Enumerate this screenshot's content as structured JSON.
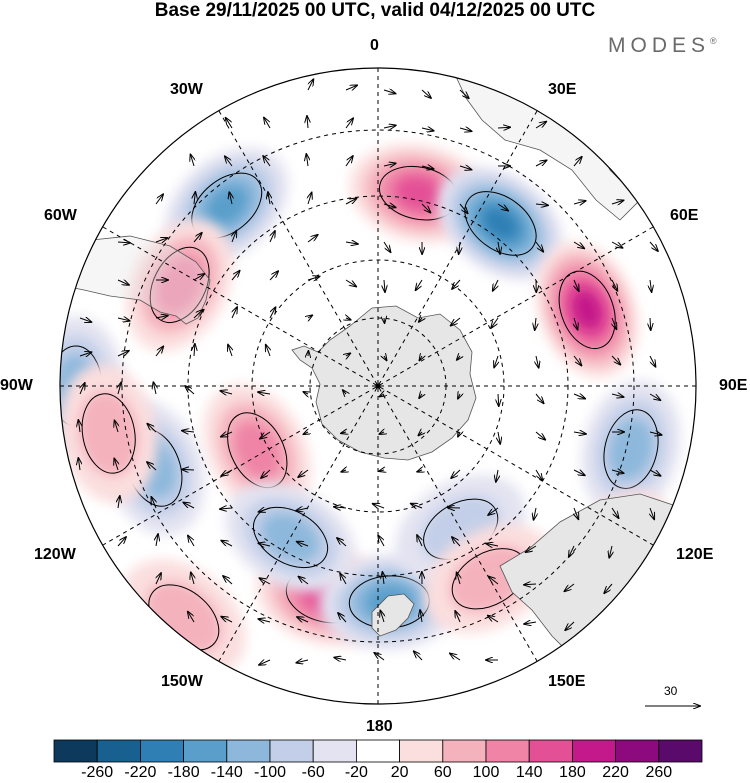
{
  "title": "Base 29/11/2025 00 UTC, valid 04/12/2025 00 UTC",
  "brand": "MODES",
  "brand_mark": "®",
  "longitude_labels": {
    "top": "0",
    "e30": "30E",
    "e60": "60E",
    "e90": "90E",
    "e120": "120E",
    "e150": "150E",
    "bottom": "180",
    "w150": "150W",
    "w120": "120W",
    "w90": "90W",
    "w60": "60W",
    "w30": "30W"
  },
  "reference_vector": "30",
  "colorbar": {
    "ticks": [
      "-260",
      "-220",
      "-180",
      "-140",
      "-100",
      "-60",
      "-20",
      "20",
      "60",
      "100",
      "140",
      "180",
      "220",
      "260"
    ],
    "colors": [
      "#0d3a5c",
      "#17608f",
      "#2f7fb5",
      "#5a9fcb",
      "#8db8dc",
      "#c3cfe8",
      "#e3e3f1",
      "#ffffff",
      "#fbdede",
      "#f4b2bd",
      "#ef84a6",
      "#e45096",
      "#c4198a",
      "#8c0a7d",
      "#5a0a6b"
    ]
  },
  "anomalies": [
    {
      "name": "anomaly-neg-30w-high",
      "lon": -40,
      "r": 0.74,
      "value": -150
    },
    {
      "name": "anomaly-pos-60w",
      "lon": -63,
      "r": 0.7,
      "value": 100
    },
    {
      "name": "anomaly-pos-10e",
      "lon": 12,
      "r": 0.62,
      "value": 170
    },
    {
      "name": "anomaly-neg-35e",
      "lon": 37,
      "r": 0.64,
      "value": -200
    },
    {
      "name": "anomaly-pos-70e",
      "lon": 70,
      "r": 0.7,
      "value": 200
    },
    {
      "name": "anomaly-neg-105e",
      "lon": 104,
      "r": 0.82,
      "value": -100
    },
    {
      "name": "anomaly-pos-120e",
      "lon": 125,
      "r": 0.92,
      "value": 60
    },
    {
      "name": "anomaly-pos-165w",
      "lon": -166,
      "r": 0.68,
      "value": 170
    },
    {
      "name": "anomaly-neg-178e",
      "lon": 177,
      "r": 0.68,
      "value": -170
    },
    {
      "name": "anomaly-neg-90w",
      "lon": -90,
      "r": 0.95,
      "value": -100
    },
    {
      "name": "anomaly-pos-115w",
      "lon": -118,
      "r": 0.43,
      "value": 100
    },
    {
      "name": "anomaly-neg-150w",
      "lon": -150,
      "r": 0.55,
      "value": -100
    },
    {
      "name": "anomaly-neg-110w",
      "lon": -110,
      "r": 0.75,
      "value": -100
    },
    {
      "name": "anomaly-pos-100w",
      "lon": -100,
      "r": 0.86,
      "value": 60
    },
    {
      "name": "anomaly-pos-140w",
      "lon": -140,
      "r": 0.95,
      "value": 60
    },
    {
      "name": "anomaly-neg-150e",
      "lon": 150,
      "r": 0.52,
      "value": -60
    },
    {
      "name": "anomaly-pos-155e",
      "lon": 150,
      "r": 0.7,
      "value": 60
    }
  ]
}
